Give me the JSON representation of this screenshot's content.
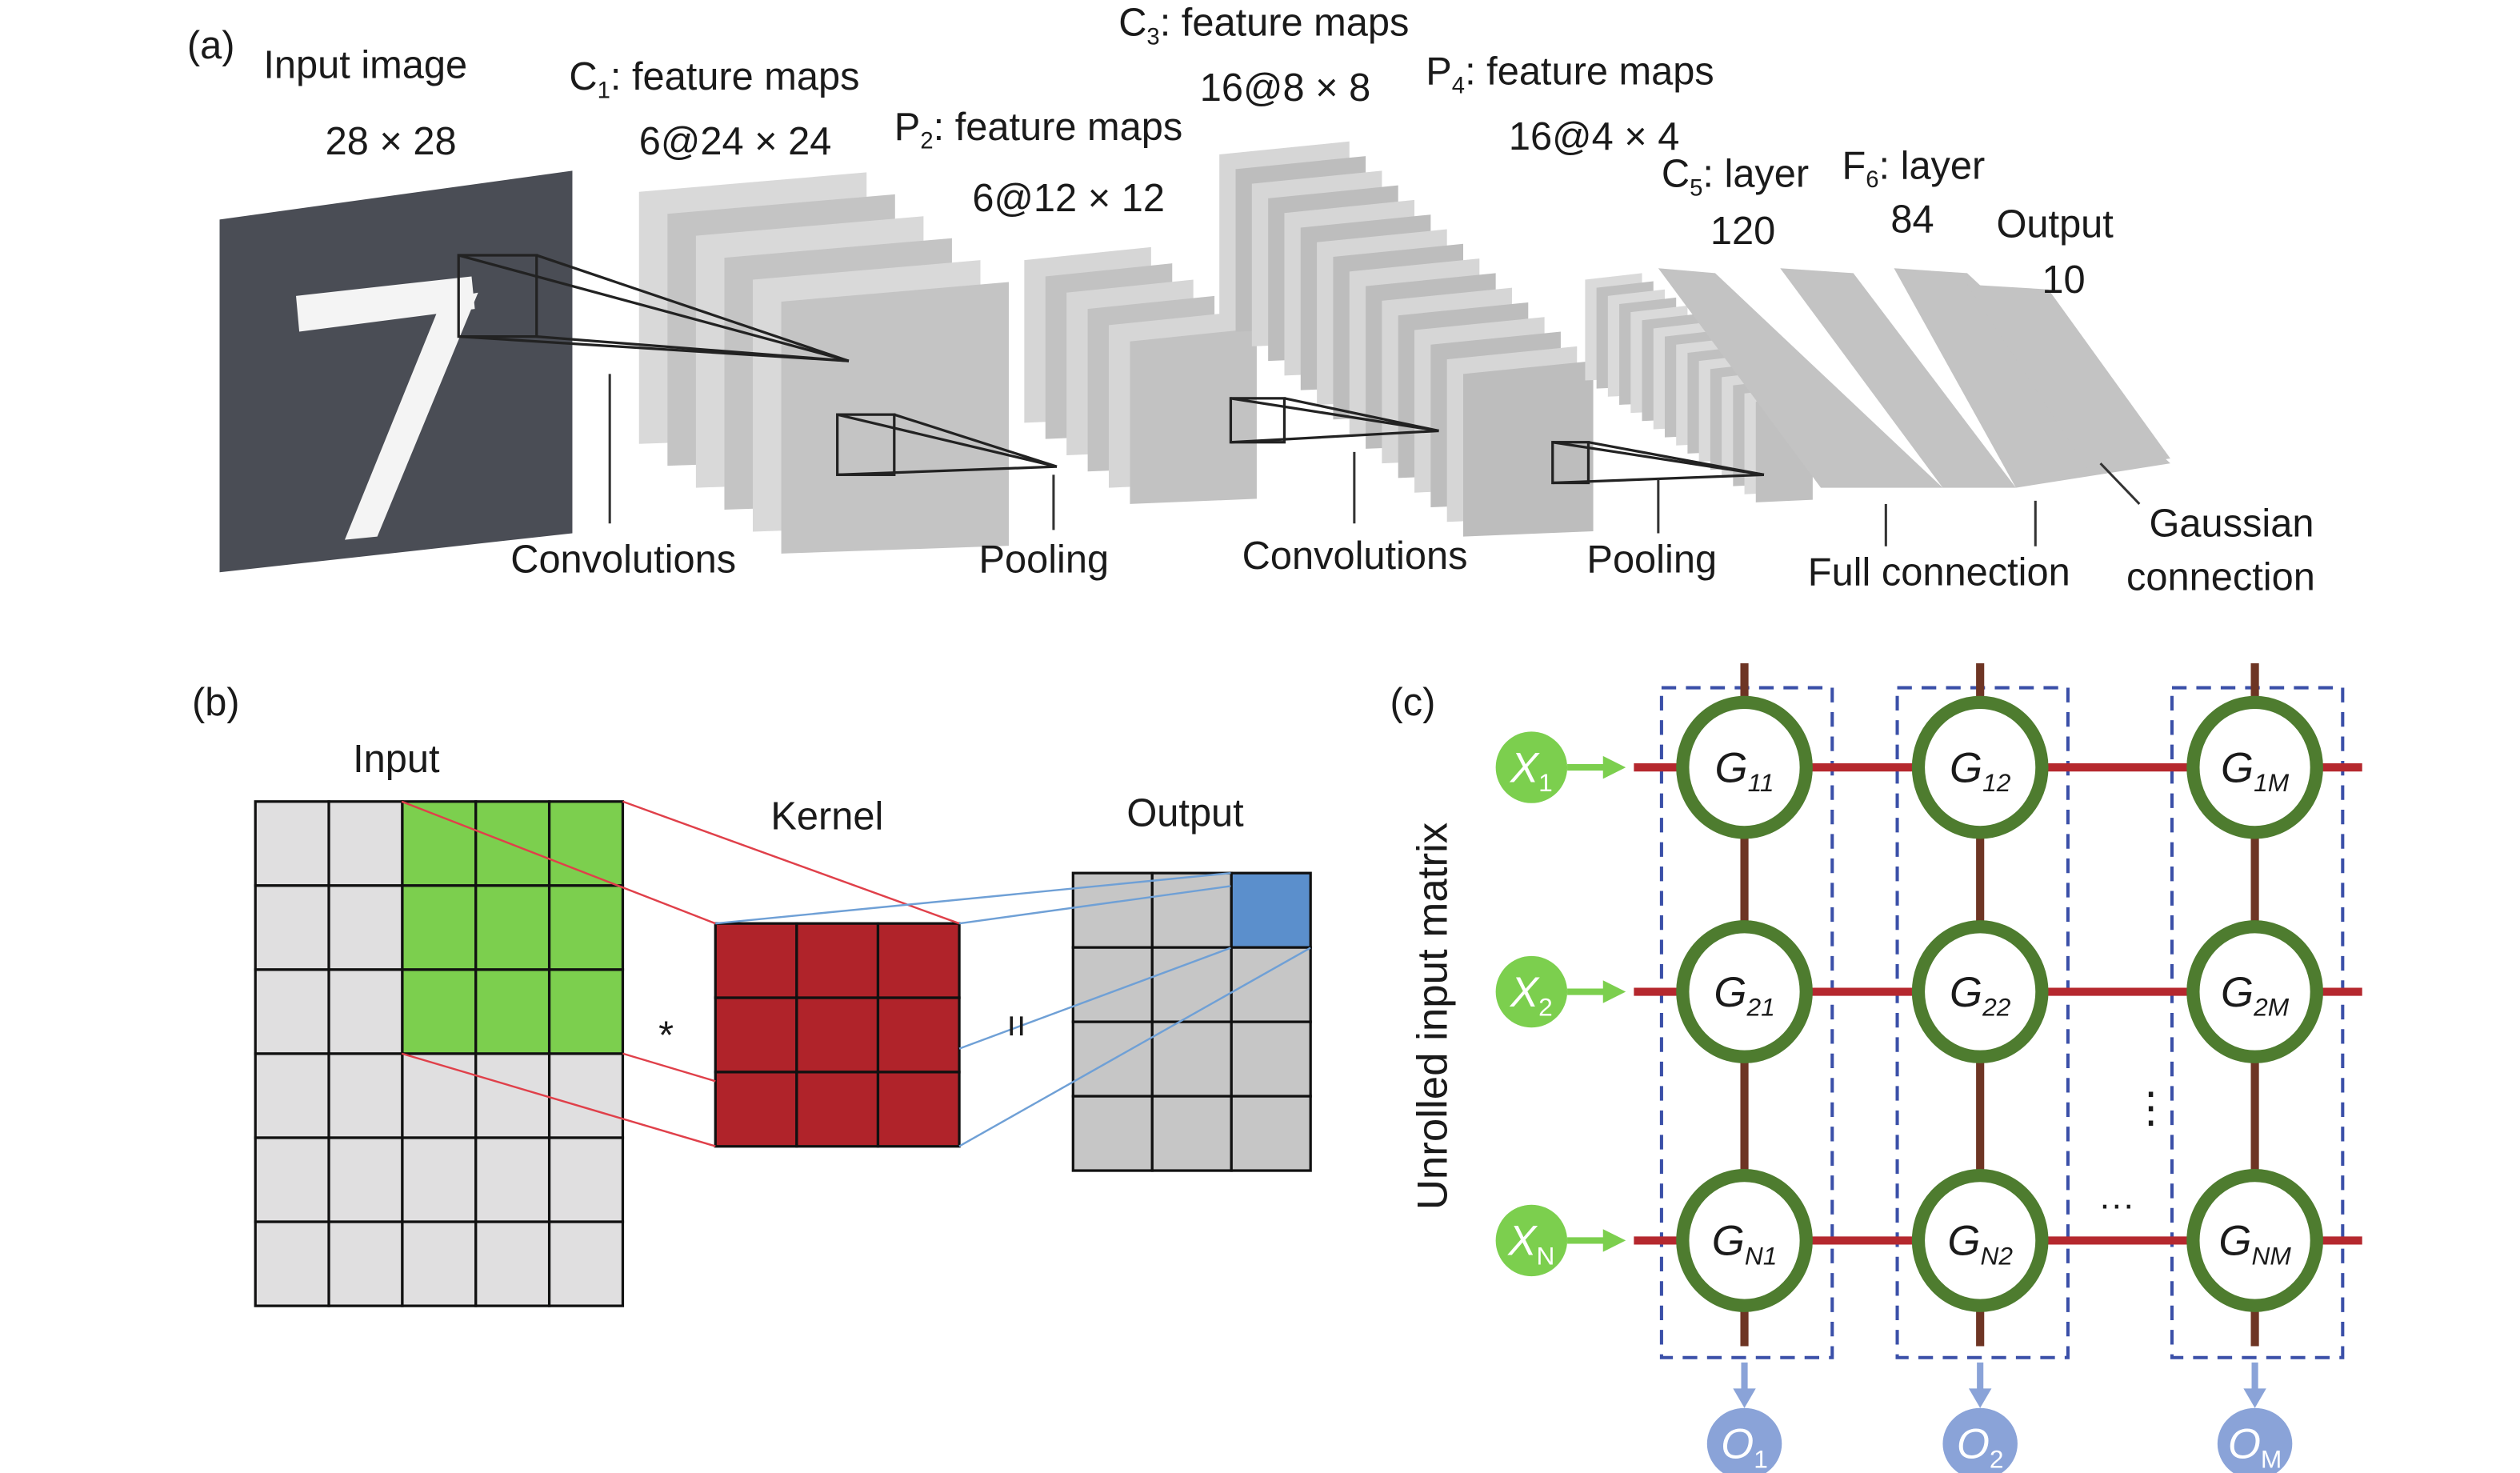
{
  "panel_a": {
    "label": "(a)",
    "input_title": "Input image",
    "input_size": "28 × 28",
    "c1": {
      "main": "C",
      "sub": "1",
      "rest": ":  feature maps",
      "size": "6@24 × 24"
    },
    "p2": {
      "main": "P",
      "sub": "2",
      "rest": ":  feature maps",
      "size": "6@12 × 12"
    },
    "c3": {
      "main": "C",
      "sub": "3",
      "rest": ":  feature maps",
      "size": "16@8 × 8"
    },
    "p4": {
      "main": "P",
      "sub": "4",
      "rest": ":  feature maps",
      "size": "16@4 × 4"
    },
    "c5": {
      "main": "C",
      "sub": "5",
      "rest": ":  layer",
      "size": "120"
    },
    "f6": {
      "main": "F",
      "sub": "6",
      "rest": ":  layer",
      "size": "84"
    },
    "output": {
      "title": "Output",
      "size": "10"
    },
    "ops": {
      "conv1": "Convolutions",
      "pool1": "Pooling",
      "conv2": "Convolutions",
      "pool2": "Pooling",
      "full": "Full connection",
      "gauss1": "Gaussian",
      "gauss2": "connection"
    }
  },
  "panel_b": {
    "label": "(b)",
    "input_title": "Input",
    "kernel_title": "Kernel",
    "output_title": "Output",
    "conv_symbol": "*",
    "equals_symbol": "=",
    "colors": {
      "input": "#e0dfe0",
      "window": "#7ccf4e",
      "kernel": "#b0232a",
      "output": "#c6c6c6",
      "output_cell": "#5b8fcc"
    }
  },
  "panel_c": {
    "label": "(c)",
    "axis_label": "Unrolled input matrix",
    "inputs": [
      {
        "main": "X",
        "sub": "1"
      },
      {
        "main": "X",
        "sub": "2"
      },
      {
        "main": "X",
        "sub": "N"
      }
    ],
    "outputs": [
      {
        "main": "O",
        "sub": "1"
      },
      {
        "main": "O",
        "sub": "2"
      },
      {
        "main": "O",
        "sub": "M"
      }
    ],
    "nodes": [
      [
        {
          "main": "G",
          "sub": "11"
        },
        {
          "main": "G",
          "sub": "12"
        },
        {
          "main": "G",
          "sub": "1M"
        }
      ],
      [
        {
          "main": "G",
          "sub": "21"
        },
        {
          "main": "G",
          "sub": "22"
        },
        {
          "main": "G",
          "sub": "2M"
        }
      ],
      [
        {
          "main": "G",
          "sub": "N1"
        },
        {
          "main": "G",
          "sub": "N2"
        },
        {
          "main": "G",
          "sub": "NM"
        }
      ]
    ],
    "vdots": "⋮",
    "hdots": "···",
    "colors": {
      "row_line": "#b5282e",
      "col_line": "#6e3524",
      "node": "#4e7c2f",
      "input": "#7ccf4e",
      "output": "#8aa3d8",
      "column_box": "#3a4fa8"
    }
  }
}
